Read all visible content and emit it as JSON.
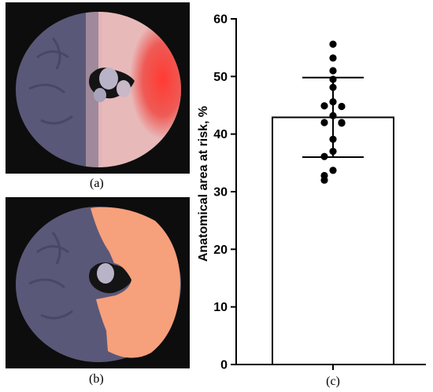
{
  "panels": {
    "a": {
      "label": "(a)"
    },
    "b": {
      "label": "(b)"
    }
  },
  "colors": {
    "tissue": "#5a5878",
    "background": "#0d0d0d",
    "stain": "#ef5a55",
    "overlay": "#f7a07c"
  },
  "chart_data": {
    "type": "bar",
    "categories": [
      "(c)"
    ],
    "values": [
      42.9
    ],
    "error_bar": {
      "lower": 36.0,
      "upper": 49.8
    },
    "points": [
      55.6,
      53.2,
      51.0,
      49.5,
      48.1,
      45.6,
      44.8,
      44.9,
      43.2,
      42.0,
      42.0,
      41.9,
      39.1,
      37.0,
      36.1,
      33.7,
      32.8,
      32.0
    ],
    "ylabel": "Anatomical area at risk, %",
    "xlabel": "",
    "ylim": [
      0,
      60
    ],
    "yticks": [
      0,
      10,
      20,
      30,
      40,
      50,
      60
    ],
    "grid": false
  }
}
